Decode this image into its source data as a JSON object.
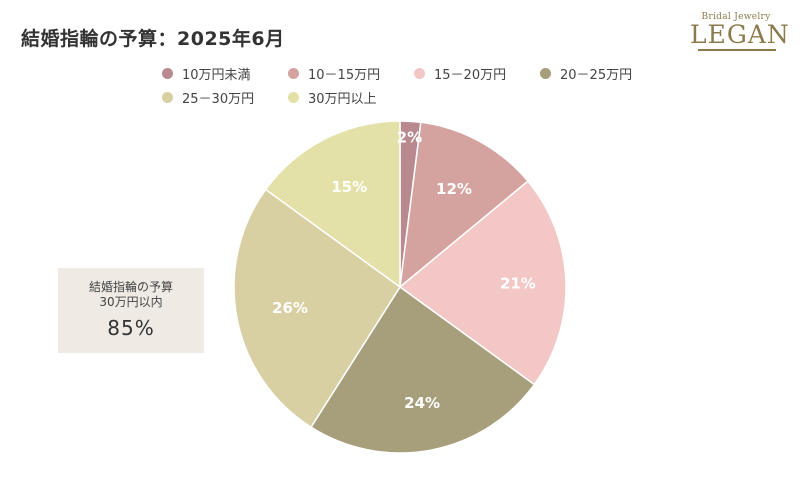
{
  "title": "結婚指輪の予算：2025年6月",
  "logo": {
    "sub": "Bridal Jewelry",
    "main": "LEGAN"
  },
  "callout": {
    "label": [
      "結婚指輪の予算",
      "30万円以内"
    ],
    "value": "85%"
  },
  "chart_data": {
    "type": "pie",
    "title": "結婚指輪の予算：2025年6月",
    "legend_position": "top",
    "categories": [
      "10万円未満",
      "10－15万円",
      "15－20万円",
      "20－25万円",
      "25－30万円",
      "30万円以上"
    ],
    "values": [
      2,
      12,
      21,
      24,
      26,
      15
    ],
    "labels": [
      "2%",
      "12%",
      "21%",
      "24%",
      "26%",
      "15%"
    ],
    "colors": [
      "#b88a8f",
      "#d4a3a0",
      "#f2c7c6",
      "#a79e7b",
      "#d8cfa3",
      "#e3e0a8"
    ],
    "start": "12 o'clock, clockwise"
  }
}
